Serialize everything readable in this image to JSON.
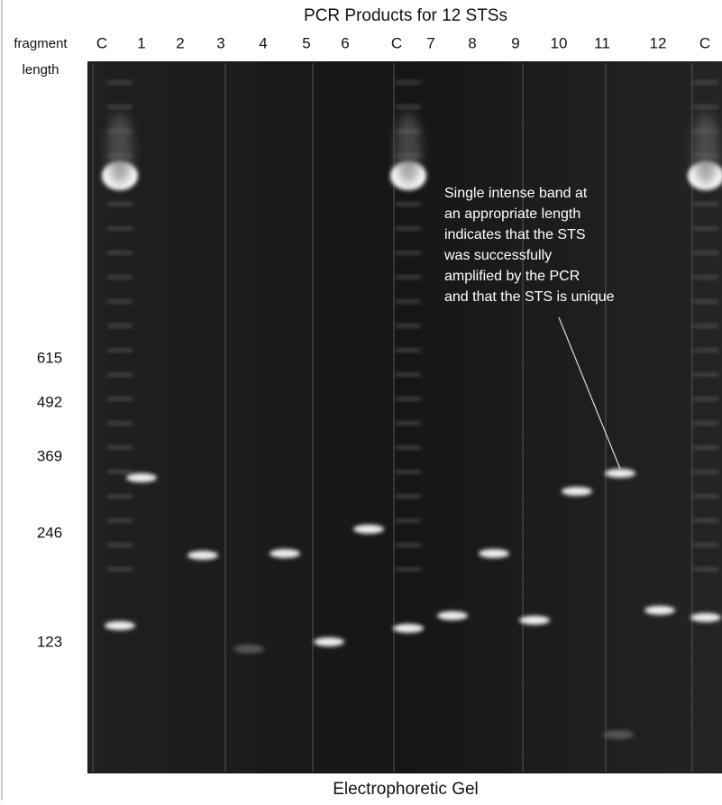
{
  "header": {
    "title": "PCR Products for 12 STSs",
    "axis_label": [
      "fragment",
      "length"
    ]
  },
  "lanes": [
    "C",
    "1",
    "2",
    "3",
    "4",
    "5",
    "6",
    "C",
    "7",
    "8",
    "9",
    "10",
    "11",
    "12",
    "C"
  ],
  "size_markers": [
    "615",
    "492",
    "369",
    "246",
    "123"
  ],
  "annotation": [
    "Single intense band  at",
    "an appropriate length",
    "indicates that the STS",
    "was successfully",
    "amplified by the PCR",
    "and that the STS is unique"
  ],
  "caption": "Electrophoretic  Gel"
}
